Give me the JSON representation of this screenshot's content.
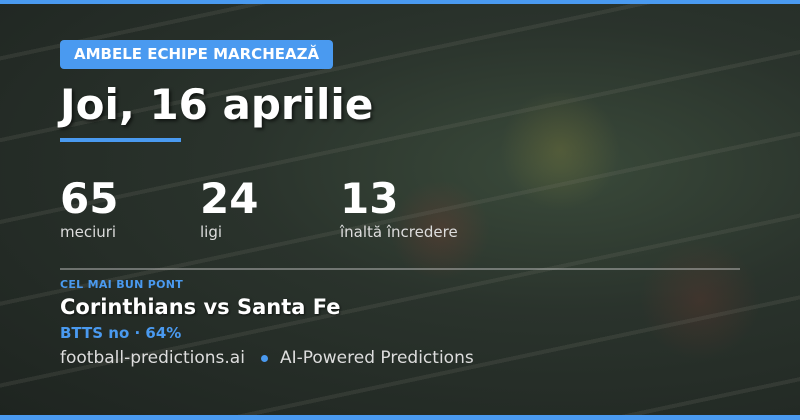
{
  "badge": "AMBELE ECHIPE MARCHEAZĂ",
  "title": "Joi, 16 aprilie",
  "stats": [
    {
      "value": "65",
      "label": "meciuri"
    },
    {
      "value": "24",
      "label": "ligi"
    },
    {
      "value": "13",
      "label": "înaltă încredere"
    }
  ],
  "best": {
    "label": "CEL MAI BUN PONT",
    "match": "Corinthians vs Santa Fe",
    "pick": "BTTS no · 64%"
  },
  "footer": {
    "site": "football-predictions.ai",
    "tagline": "AI-Powered Predictions"
  },
  "colors": {
    "accent": "#4a9af0"
  }
}
